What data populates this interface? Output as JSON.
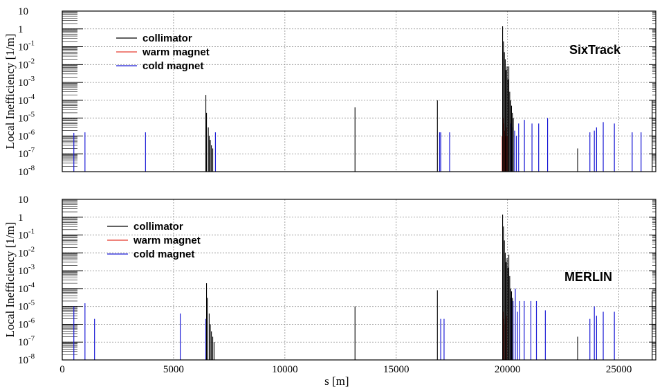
{
  "colors": {
    "collimator": "#000000",
    "warm": "#e53b2f",
    "cold": "#1c1cd6",
    "grid": "#8c8c8c"
  },
  "chart_data": [
    {
      "type": "bar",
      "code_label": "SixTrack",
      "ylabel": "Local Inefficiency [1/m]",
      "xlabel": "",
      "xlim": [
        0,
        26660
      ],
      "ylim": [
        1e-08,
        10
      ],
      "yscale": "log",
      "grid": true,
      "legend_position": "top-left",
      "yticks": [
        {
          "v": 10,
          "base": "10",
          "exp": ""
        },
        {
          "v": 1,
          "base": "1",
          "exp": ""
        },
        {
          "v": 0.1,
          "base": "10",
          "exp": "-1"
        },
        {
          "v": 0.01,
          "base": "10",
          "exp": "-2"
        },
        {
          "v": 0.001,
          "base": "10",
          "exp": "-3"
        },
        {
          "v": 0.0001,
          "base": "10",
          "exp": "-4"
        },
        {
          "v": 1e-05,
          "base": "10",
          "exp": "-5"
        },
        {
          "v": 1e-06,
          "base": "10",
          "exp": "-6"
        },
        {
          "v": 1e-07,
          "base": "10",
          "exp": "-7"
        },
        {
          "v": 1e-08,
          "base": "10",
          "exp": "-8"
        }
      ],
      "series": [
        {
          "name": "collimator",
          "color": "#000000",
          "points": [
            [
              6450,
              0.0002
            ],
            [
              6480,
              2e-05
            ],
            [
              6560,
              3e-06
            ],
            [
              6600,
              1e-06
            ],
            [
              6650,
              6e-07
            ],
            [
              6700,
              3e-07
            ],
            [
              6760,
              2e-07
            ],
            [
              13150,
              4e-05
            ],
            [
              16850,
              0.0001
            ],
            [
              19780,
              1.4
            ],
            [
              19820,
              0.2
            ],
            [
              19860,
              0.05
            ],
            [
              19900,
              0.02
            ],
            [
              19940,
              0.005
            ],
            [
              19980,
              0.008
            ],
            [
              20020,
              0.0015
            ],
            [
              20060,
              0.008
            ],
            [
              20100,
              0.0003
            ],
            [
              20140,
              0.0001
            ],
            [
              20180,
              5e-05
            ],
            [
              20220,
              2e-05
            ],
            [
              20260,
              1e-05
            ],
            [
              23150,
              2e-07
            ],
            [
              26500,
              0.0001
            ]
          ]
        },
        {
          "name": "warm magnet",
          "color": "#e53b2f",
          "points": [
            [
              19760,
              1e-06
            ],
            [
              19800,
              1e-05
            ],
            [
              19840,
              5e-06
            ],
            [
              19880,
              2e-06
            ],
            [
              19920,
              1e-06
            ],
            [
              19960,
              3e-06
            ],
            [
              20000,
              1e-06
            ]
          ]
        },
        {
          "name": "cold magnet",
          "color": "#1c1cd6",
          "points": [
            [
              520,
              1.5e-06
            ],
            [
              1020,
              1.6e-06
            ],
            [
              3740,
              1.6e-06
            ],
            [
              6880,
              1.6e-06
            ],
            [
              16950,
              1.6e-06
            ],
            [
              17000,
              1.6e-06
            ],
            [
              17400,
              1.6e-06
            ],
            [
              20150,
              5e-06
            ],
            [
              20250,
              3e-06
            ],
            [
              20320,
              2e-06
            ],
            [
              20400,
              1e-06
            ],
            [
              20500,
              5e-06
            ],
            [
              20760,
              8e-06
            ],
            [
              21100,
              5e-06
            ],
            [
              21400,
              5e-06
            ],
            [
              21800,
              1e-05
            ],
            [
              23700,
              1.6e-06
            ],
            [
              23900,
              2e-06
            ],
            [
              24000,
              3e-06
            ],
            [
              24300,
              6e-06
            ],
            [
              24800,
              5e-06
            ],
            [
              25600,
              1.6e-06
            ],
            [
              26000,
              1.6e-06
            ]
          ]
        }
      ]
    },
    {
      "type": "bar",
      "code_label": "MERLIN",
      "ylabel": "Local Inefficiency [1/m]",
      "xlabel": "s [m]",
      "xlim": [
        0,
        26660
      ],
      "ylim": [
        1e-08,
        10
      ],
      "yscale": "log",
      "grid": true,
      "legend_position": "top-left",
      "xticks": [
        "0",
        "5000",
        "10000",
        "15000",
        "20000",
        "25000"
      ],
      "xtick_values": [
        0,
        5000,
        10000,
        15000,
        20000,
        25000
      ],
      "yticks": [
        {
          "v": 10,
          "base": "10",
          "exp": ""
        },
        {
          "v": 1,
          "base": "1",
          "exp": ""
        },
        {
          "v": 0.1,
          "base": "10",
          "exp": "-1"
        },
        {
          "v": 0.01,
          "base": "10",
          "exp": "-2"
        },
        {
          "v": 0.001,
          "base": "10",
          "exp": "-3"
        },
        {
          "v": 0.0001,
          "base": "10",
          "exp": "-4"
        },
        {
          "v": 1e-05,
          "base": "10",
          "exp": "-5"
        },
        {
          "v": 1e-06,
          "base": "10",
          "exp": "-6"
        },
        {
          "v": 1e-07,
          "base": "10",
          "exp": "-7"
        },
        {
          "v": 1e-08,
          "base": "10",
          "exp": "-8"
        }
      ],
      "series": [
        {
          "name": "collimator",
          "color": "#000000",
          "points": [
            [
              6480,
              0.0002
            ],
            [
              6520,
              3e-05
            ],
            [
              6600,
              4e-06
            ],
            [
              6650,
              1e-06
            ],
            [
              6700,
              4e-07
            ],
            [
              6760,
              2e-07
            ],
            [
              6820,
              1e-07
            ],
            [
              13150,
              1e-05
            ],
            [
              16850,
              8e-05
            ],
            [
              19780,
              1.4
            ],
            [
              19820,
              0.3
            ],
            [
              19860,
              0.05
            ],
            [
              19900,
              0.01
            ],
            [
              19940,
              0.003
            ],
            [
              19980,
              0.005
            ],
            [
              20020,
              0.0015
            ],
            [
              20060,
              0.008
            ],
            [
              20100,
              0.0005
            ],
            [
              20140,
              0.0001
            ],
            [
              20180,
              7e-05
            ],
            [
              20220,
              3e-05
            ],
            [
              23150,
              2e-07
            ],
            [
              26500,
              7e-05
            ]
          ]
        },
        {
          "name": "warm magnet",
          "color": "#e53b2f",
          "points": [
            [
              19800,
              5e-06
            ],
            [
              19840,
              2e-06
            ],
            [
              19900,
              1e-06
            ],
            [
              19960,
              3e-06
            ]
          ]
        },
        {
          "name": "cold magnet",
          "color": "#1c1cd6",
          "points": [
            [
              520,
              1e-05
            ],
            [
              1020,
              1.5e-05
            ],
            [
              1450,
              2e-06
            ],
            [
              5300,
              4e-06
            ],
            [
              6450,
              2e-06
            ],
            [
              17000,
              2e-06
            ],
            [
              17150,
              2e-06
            ],
            [
              20150,
              3e-05
            ],
            [
              20250,
              2e-05
            ],
            [
              20350,
              0.0001
            ],
            [
              20450,
              5e-06
            ],
            [
              20550,
              2e-05
            ],
            [
              20750,
              2e-05
            ],
            [
              21050,
              2e-05
            ],
            [
              21300,
              2e-05
            ],
            [
              21700,
              6e-06
            ],
            [
              23700,
              2e-06
            ],
            [
              23900,
              1e-05
            ],
            [
              24000,
              3e-06
            ],
            [
              24300,
              5e-06
            ],
            [
              24800,
              5e-06
            ]
          ]
        }
      ]
    }
  ]
}
